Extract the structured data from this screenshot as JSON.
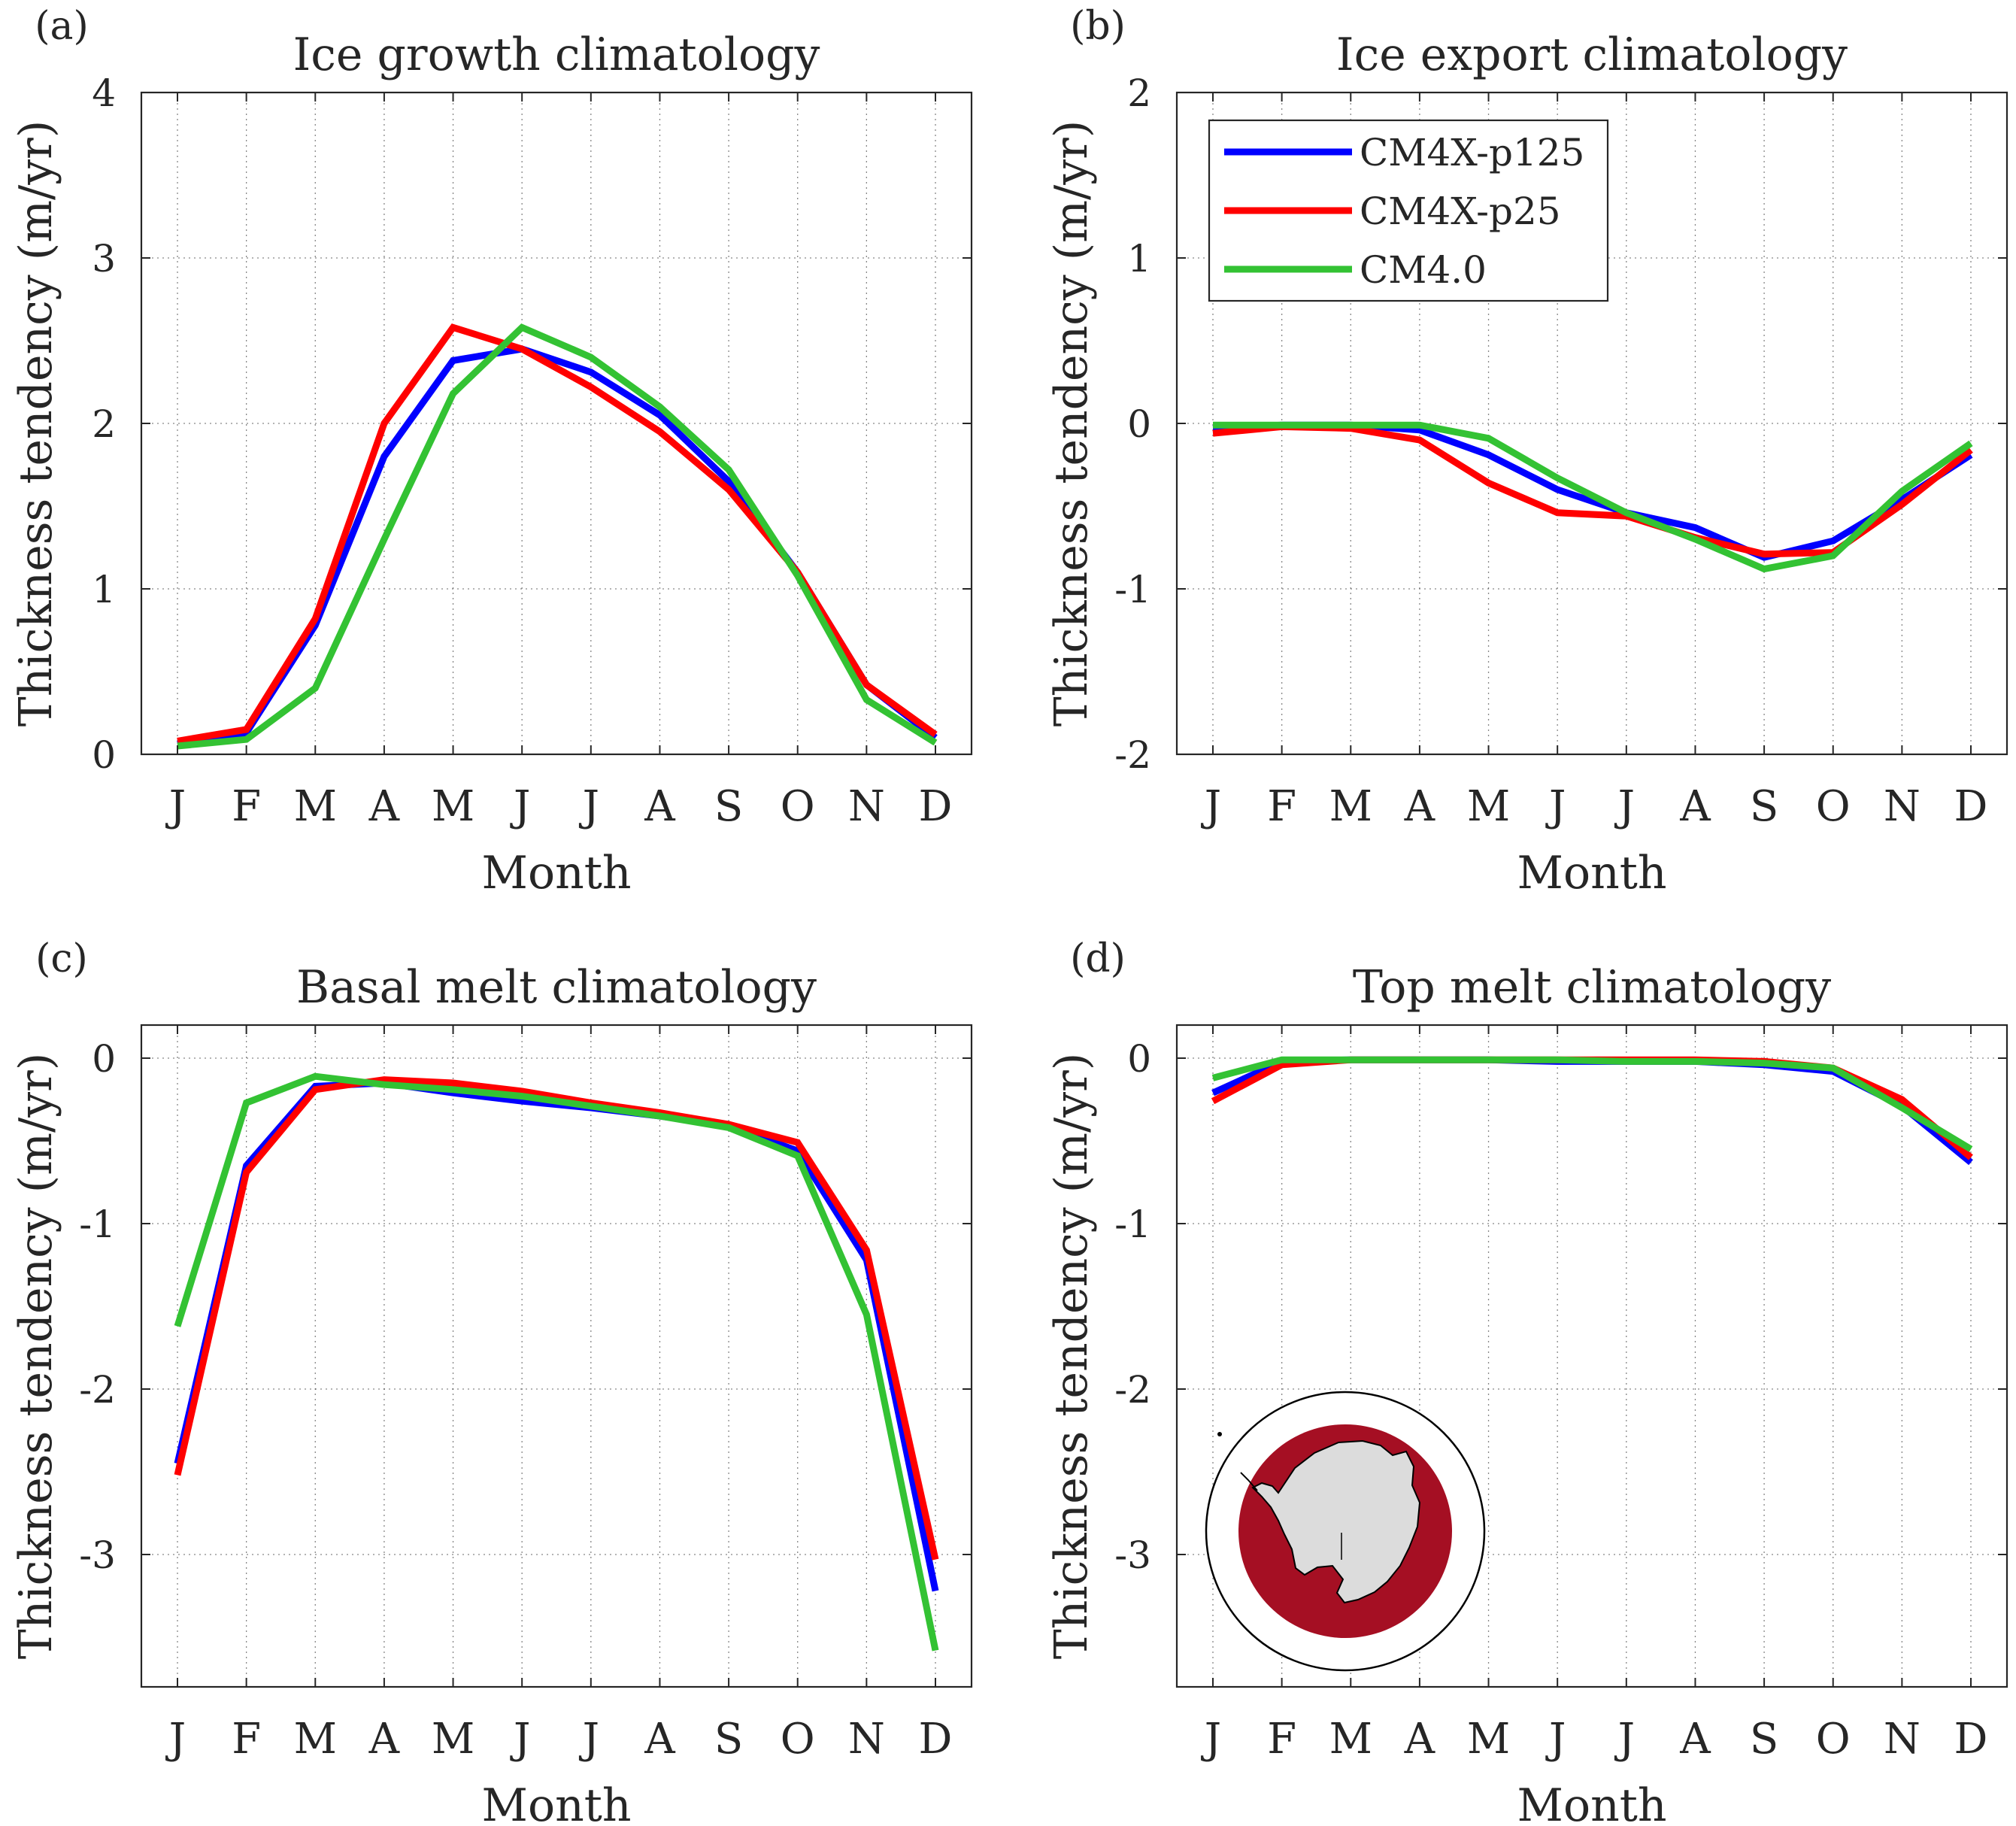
{
  "figure": {
    "months": [
      "J",
      "F",
      "M",
      "A",
      "M",
      "J",
      "J",
      "A",
      "S",
      "O",
      "N",
      "D"
    ],
    "series_colors": {
      "CM4X-p125": "#0000ff",
      "CM4X-p25": "#ff0000",
      "CM4.0": "#33c233"
    },
    "inset_map": {
      "ocean_color": "#a50f23",
      "land_color": "#dcdcdc"
    }
  },
  "chart_data": [
    {
      "panel_label": "(a)",
      "type": "line",
      "title": "Ice growth climatology",
      "xlabel": "Month",
      "ylabel": "Thickness tendency (m/yr)",
      "categories": [
        "J",
        "F",
        "M",
        "A",
        "M",
        "J",
        "J",
        "A",
        "S",
        "O",
        "N",
        "D"
      ],
      "ylim": [
        0,
        4
      ],
      "yticks": [
        0,
        1,
        2,
        3,
        4
      ],
      "ytick_labels": [
        "0",
        "1",
        "2",
        "3",
        "4"
      ],
      "grid": true,
      "legend": null,
      "series": [
        {
          "name": "CM4X-p125",
          "color": "#0000ff",
          "values": [
            0.06,
            0.13,
            0.78,
            1.8,
            2.38,
            2.45,
            2.31,
            2.05,
            1.65,
            1.1,
            0.42,
            0.1
          ]
        },
        {
          "name": "CM4X-p25",
          "color": "#ff0000",
          "values": [
            0.08,
            0.15,
            0.82,
            2.0,
            2.58,
            2.45,
            2.22,
            1.95,
            1.6,
            1.1,
            0.42,
            0.12
          ]
        },
        {
          "name": "CM4.0",
          "color": "#33c233",
          "values": [
            0.05,
            0.09,
            0.4,
            1.3,
            2.18,
            2.58,
            2.4,
            2.1,
            1.72,
            1.08,
            0.33,
            0.07
          ]
        }
      ]
    },
    {
      "panel_label": "(b)",
      "type": "line",
      "title": "Ice export climatology",
      "xlabel": "Month",
      "ylabel": "Thickness tendency (m/yr)",
      "categories": [
        "J",
        "F",
        "M",
        "A",
        "M",
        "J",
        "J",
        "A",
        "S",
        "O",
        "N",
        "D"
      ],
      "ylim": [
        -2,
        2
      ],
      "yticks": [
        -2,
        -1,
        0,
        1,
        2
      ],
      "ytick_labels": [
        "-2",
        "-1",
        "0",
        "1",
        "2"
      ],
      "grid": true,
      "legend": "top-left",
      "series": [
        {
          "name": "CM4X-p125",
          "color": "#0000ff",
          "values": [
            -0.03,
            -0.01,
            -0.01,
            -0.04,
            -0.19,
            -0.4,
            -0.54,
            -0.63,
            -0.81,
            -0.71,
            -0.46,
            -0.19
          ]
        },
        {
          "name": "CM4X-p25",
          "color": "#ff0000",
          "values": [
            -0.06,
            -0.02,
            -0.03,
            -0.1,
            -0.36,
            -0.54,
            -0.56,
            -0.69,
            -0.79,
            -0.78,
            -0.49,
            -0.16
          ]
        },
        {
          "name": "CM4.0",
          "color": "#33c233",
          "values": [
            -0.01,
            -0.01,
            -0.01,
            -0.01,
            -0.09,
            -0.33,
            -0.54,
            -0.7,
            -0.88,
            -0.8,
            -0.41,
            -0.12
          ]
        }
      ]
    },
    {
      "panel_label": "(c)",
      "type": "line",
      "title": "Basal melt climatology",
      "xlabel": "Month",
      "ylabel": "Thickness tendency (m/yr)",
      "categories": [
        "J",
        "F",
        "M",
        "A",
        "M",
        "J",
        "J",
        "A",
        "S",
        "O",
        "N",
        "D"
      ],
      "ylim": [
        -3.8,
        0.2
      ],
      "yticks": [
        -3,
        -2,
        -1,
        0
      ],
      "ytick_labels": [
        "-3",
        "-2",
        "-1",
        "0"
      ],
      "grid": true,
      "legend": null,
      "series": [
        {
          "name": "CM4X-p125",
          "color": "#0000ff",
          "values": [
            -2.45,
            -0.65,
            -0.17,
            -0.15,
            -0.21,
            -0.26,
            -0.3,
            -0.35,
            -0.41,
            -0.56,
            -1.22,
            -3.22
          ]
        },
        {
          "name": "CM4X-p25",
          "color": "#ff0000",
          "values": [
            -2.52,
            -0.69,
            -0.19,
            -0.13,
            -0.15,
            -0.2,
            -0.27,
            -0.33,
            -0.4,
            -0.51,
            -1.16,
            -3.03
          ]
        },
        {
          "name": "CM4.0",
          "color": "#33c233",
          "values": [
            -1.62,
            -0.27,
            -0.11,
            -0.16,
            -0.19,
            -0.23,
            -0.29,
            -0.35,
            -0.42,
            -0.59,
            -1.55,
            -3.58
          ]
        }
      ]
    },
    {
      "panel_label": "(d)",
      "type": "line",
      "title": "Top melt climatology",
      "xlabel": "Month",
      "ylabel": "Thickness tendency (m/yr)",
      "categories": [
        "J",
        "F",
        "M",
        "A",
        "M",
        "J",
        "J",
        "A",
        "S",
        "O",
        "N",
        "D"
      ],
      "ylim": [
        -3.8,
        0.2
      ],
      "yticks": [
        -3,
        -2,
        -1,
        0
      ],
      "ytick_labels": [
        "-3",
        "-2",
        "-1",
        "0"
      ],
      "grid": true,
      "legend": null,
      "series": [
        {
          "name": "CM4X-p125",
          "color": "#0000ff",
          "values": [
            -0.21,
            -0.02,
            -0.01,
            -0.01,
            -0.01,
            -0.02,
            -0.02,
            -0.02,
            -0.04,
            -0.08,
            -0.29,
            -0.63
          ]
        },
        {
          "name": "CM4X-p25",
          "color": "#ff0000",
          "values": [
            -0.26,
            -0.04,
            -0.01,
            -0.01,
            -0.01,
            -0.01,
            -0.01,
            -0.01,
            -0.02,
            -0.06,
            -0.25,
            -0.6
          ]
        },
        {
          "name": "CM4.0",
          "color": "#33c233",
          "values": [
            -0.12,
            -0.01,
            -0.01,
            -0.01,
            -0.01,
            -0.01,
            -0.02,
            -0.02,
            -0.03,
            -0.06,
            -0.3,
            -0.55
          ]
        }
      ]
    }
  ]
}
